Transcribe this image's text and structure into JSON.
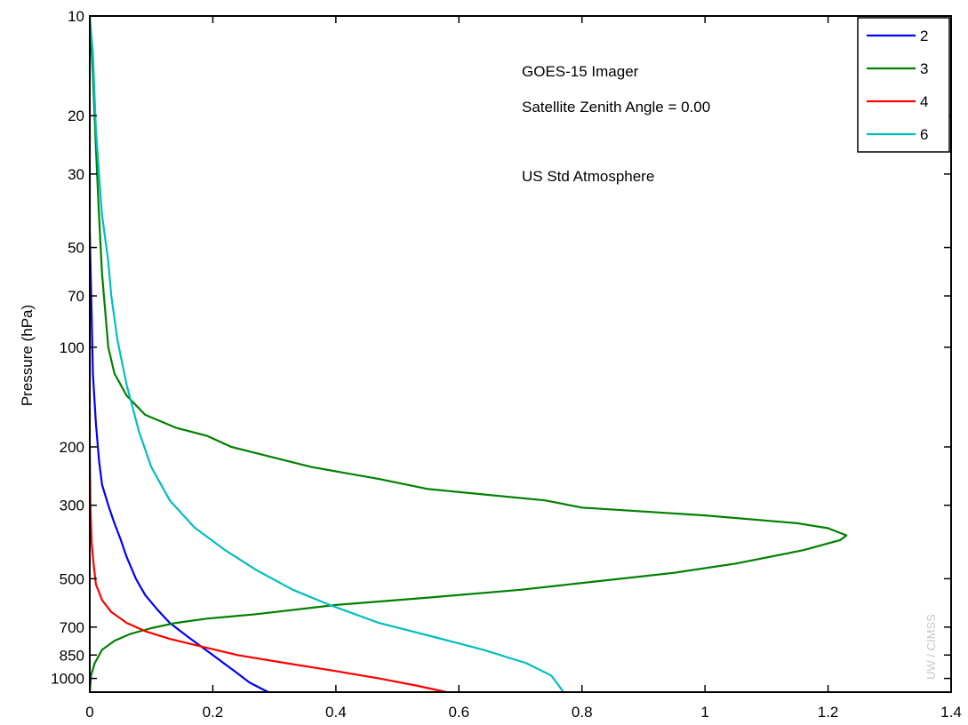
{
  "chart_data": {
    "type": "line",
    "title": "",
    "xlabel": "",
    "ylabel": "Pressure (hPa)",
    "xlim": [
      0,
      1.4
    ],
    "ylim": [
      10,
      1100
    ],
    "y_scale": "log",
    "y_reversed": true,
    "grid": false,
    "legend_position": "top-right",
    "x_ticks": [
      0,
      0.2,
      0.4,
      0.6,
      0.8,
      1,
      1.2,
      1.4
    ],
    "x_tick_labels": [
      "0",
      "0.2",
      "0.4",
      "0.6",
      "0.8",
      "1",
      "1.2",
      "1.4"
    ],
    "y_ticks": [
      10,
      20,
      30,
      50,
      70,
      100,
      200,
      300,
      500,
      700,
      850,
      1000
    ],
    "y_tick_labels": [
      "10",
      "20",
      "30",
      "50",
      "70",
      "100",
      "200",
      "300",
      "500",
      "700",
      "850",
      "1000"
    ],
    "annotations": [
      "GOES-15 Imager",
      "Satellite Zenith Angle = 0.00",
      "US Std Atmosphere"
    ],
    "watermark": "UW / CIMSS",
    "series": [
      {
        "name": "2",
        "color": "#0000ff",
        "points": [
          [
            0.0,
            45
          ],
          [
            0.003,
            80
          ],
          [
            0.005,
            120
          ],
          [
            0.01,
            170
          ],
          [
            0.015,
            220
          ],
          [
            0.02,
            260
          ],
          [
            0.03,
            300
          ],
          [
            0.04,
            340
          ],
          [
            0.05,
            380
          ],
          [
            0.06,
            430
          ],
          [
            0.075,
            500
          ],
          [
            0.09,
            560
          ],
          [
            0.11,
            620
          ],
          [
            0.13,
            680
          ],
          [
            0.16,
            750
          ],
          [
            0.2,
            850
          ],
          [
            0.235,
            950
          ],
          [
            0.26,
            1030
          ],
          [
            0.29,
            1100
          ]
        ]
      },
      {
        "name": "3",
        "color": "#008000",
        "points": [
          [
            0.0,
            10
          ],
          [
            0.005,
            15
          ],
          [
            0.01,
            25
          ],
          [
            0.015,
            40
          ],
          [
            0.02,
            60
          ],
          [
            0.03,
            100
          ],
          [
            0.04,
            120
          ],
          [
            0.06,
            140
          ],
          [
            0.09,
            160
          ],
          [
            0.14,
            175
          ],
          [
            0.19,
            185
          ],
          [
            0.23,
            200
          ],
          [
            0.36,
            230
          ],
          [
            0.47,
            250
          ],
          [
            0.55,
            268
          ],
          [
            0.74,
            290
          ],
          [
            0.8,
            305
          ],
          [
            1.0,
            322
          ],
          [
            1.15,
            340
          ],
          [
            1.2,
            352
          ],
          [
            1.23,
            370
          ],
          [
            1.22,
            382
          ],
          [
            1.16,
            410
          ],
          [
            1.05,
            450
          ],
          [
            0.95,
            480
          ],
          [
            0.82,
            510
          ],
          [
            0.7,
            540
          ],
          [
            0.55,
            570
          ],
          [
            0.4,
            600
          ],
          [
            0.27,
            640
          ],
          [
            0.19,
            660
          ],
          [
            0.14,
            680
          ],
          [
            0.1,
            705
          ],
          [
            0.065,
            735
          ],
          [
            0.04,
            770
          ],
          [
            0.02,
            820
          ],
          [
            0.008,
            900
          ],
          [
            0.002,
            980
          ],
          [
            0.0,
            1100
          ]
        ]
      },
      {
        "name": "4",
        "color": "#ff0000",
        "points": [
          [
            0.0,
            18
          ],
          [
            0.0,
            200
          ],
          [
            0.001,
            300
          ],
          [
            0.003,
            390
          ],
          [
            0.006,
            450
          ],
          [
            0.01,
            520
          ],
          [
            0.02,
            580
          ],
          [
            0.035,
            630
          ],
          [
            0.06,
            680
          ],
          [
            0.09,
            720
          ],
          [
            0.13,
            760
          ],
          [
            0.18,
            800
          ],
          [
            0.24,
            850
          ],
          [
            0.32,
            900
          ],
          [
            0.4,
            950
          ],
          [
            0.47,
            1000
          ],
          [
            0.53,
            1050
          ],
          [
            0.58,
            1100
          ]
        ]
      },
      {
        "name": "6",
        "color": "#00bfbf",
        "points": [
          [
            0.0,
            10
          ],
          [
            0.005,
            13
          ],
          [
            0.01,
            22
          ],
          [
            0.015,
            30
          ],
          [
            0.02,
            40
          ],
          [
            0.03,
            55
          ],
          [
            0.035,
            70
          ],
          [
            0.045,
            95
          ],
          [
            0.06,
            130
          ],
          [
            0.08,
            180
          ],
          [
            0.1,
            230
          ],
          [
            0.13,
            290
          ],
          [
            0.17,
            350
          ],
          [
            0.22,
            410
          ],
          [
            0.27,
            470
          ],
          [
            0.33,
            540
          ],
          [
            0.39,
            600
          ],
          [
            0.47,
            680
          ],
          [
            0.56,
            750
          ],
          [
            0.64,
            820
          ],
          [
            0.71,
            900
          ],
          [
            0.75,
            980
          ],
          [
            0.77,
            1100
          ]
        ]
      }
    ]
  }
}
